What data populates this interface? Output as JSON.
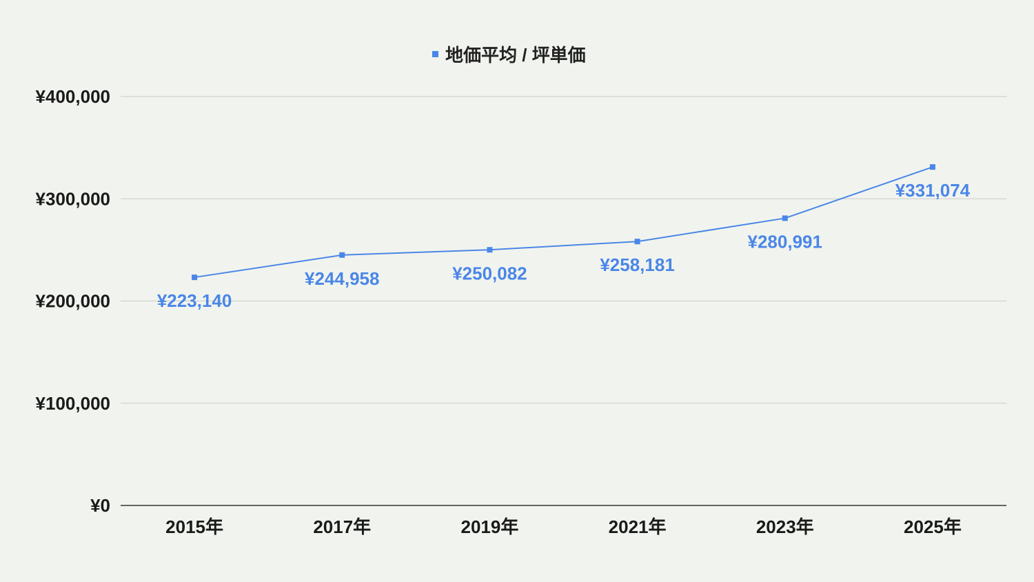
{
  "colors": {
    "background": "#f1f4ee",
    "series": "#4a86e8",
    "grid": "#c9ccc6",
    "axis": "#333333",
    "text": "#1a1a1a"
  },
  "chart_data": {
    "type": "line",
    "legend_position": "top",
    "grid": true,
    "categories": [
      "2015年",
      "2017年",
      "2019年",
      "2021年",
      "2023年",
      "2025年"
    ],
    "series": [
      {
        "name": "地価平均 / 坪単価",
        "values": [
          223140,
          244958,
          250082,
          258181,
          280991,
          331074
        ],
        "labels": [
          "¥223,140",
          "¥244,958",
          "¥250,082",
          "¥258,181",
          "¥280,991",
          "¥331,074"
        ]
      }
    ],
    "ylim": [
      0,
      400000
    ],
    "yticks": [
      0,
      100000,
      200000,
      300000,
      400000
    ],
    "ytick_labels": [
      "¥0",
      "¥100,000",
      "¥200,000",
      "¥300,000",
      "¥400,000"
    ]
  }
}
